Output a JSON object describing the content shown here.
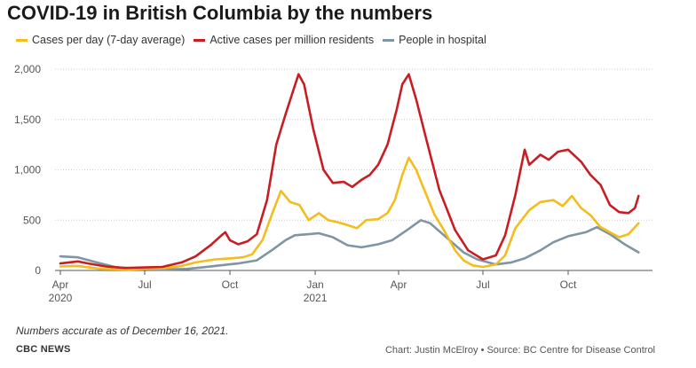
{
  "header": {
    "title": "COVID-19 in British Columbia by the numbers"
  },
  "footer": {
    "note": "Numbers accurate as of  December 16, 2021.",
    "brand": "CBC NEWS",
    "credit": "Chart: Justin McElroy • Source: BC Centre for Disease Control"
  },
  "chart_data": {
    "type": "line",
    "y_ticks": [
      "0",
      "500",
      "1,000",
      "1,500",
      "2,000"
    ],
    "ylim": [
      0,
      2000
    ],
    "grid": true,
    "legend_position": "top",
    "x_ticks": [
      {
        "date": "2020-04-01",
        "label": "Apr",
        "sub": "2020"
      },
      {
        "date": "2020-07-01",
        "label": "Jul",
        "sub": ""
      },
      {
        "date": "2020-10-01",
        "label": "Oct",
        "sub": ""
      },
      {
        "date": "2021-01-01",
        "label": "Jan",
        "sub": "2021"
      },
      {
        "date": "2021-04-01",
        "label": "Apr",
        "sub": ""
      },
      {
        "date": "2021-07-01",
        "label": "Jul",
        "sub": ""
      },
      {
        "date": "2021-10-01",
        "label": "Oct",
        "sub": ""
      }
    ],
    "xlim": [
      "2020-04-01",
      "2021-12-31"
    ],
    "series": [
      {
        "name": "Cases per day (7-day average)",
        "color": "#f2bd1d",
        "points": [
          [
            "2020-04-01",
            40
          ],
          [
            "2020-04-20",
            45
          ],
          [
            "2020-05-15",
            15
          ],
          [
            "2020-06-15",
            10
          ],
          [
            "2020-07-01",
            15
          ],
          [
            "2020-07-20",
            20
          ],
          [
            "2020-08-10",
            45
          ],
          [
            "2020-08-25",
            80
          ],
          [
            "2020-09-15",
            110
          ],
          [
            "2020-10-01",
            120
          ],
          [
            "2020-10-15",
            130
          ],
          [
            "2020-10-25",
            160
          ],
          [
            "2020-11-05",
            300
          ],
          [
            "2020-11-15",
            550
          ],
          [
            "2020-11-25",
            790
          ],
          [
            "2020-12-05",
            680
          ],
          [
            "2020-12-15",
            650
          ],
          [
            "2020-12-25",
            500
          ],
          [
            "2021-01-05",
            570
          ],
          [
            "2021-01-15",
            500
          ],
          [
            "2021-01-25",
            480
          ],
          [
            "2021-02-05",
            450
          ],
          [
            "2021-02-15",
            420
          ],
          [
            "2021-02-25",
            500
          ],
          [
            "2021-03-10",
            510
          ],
          [
            "2021-03-20",
            570
          ],
          [
            "2021-03-28",
            700
          ],
          [
            "2021-04-05",
            950
          ],
          [
            "2021-04-12",
            1120
          ],
          [
            "2021-04-20",
            1000
          ],
          [
            "2021-05-01",
            750
          ],
          [
            "2021-05-10",
            550
          ],
          [
            "2021-05-20",
            400
          ],
          [
            "2021-06-01",
            200
          ],
          [
            "2021-06-10",
            100
          ],
          [
            "2021-06-20",
            50
          ],
          [
            "2021-07-01",
            35
          ],
          [
            "2021-07-15",
            60
          ],
          [
            "2021-07-25",
            150
          ],
          [
            "2021-08-05",
            420
          ],
          [
            "2021-08-20",
            600
          ],
          [
            "2021-09-01",
            680
          ],
          [
            "2021-09-15",
            700
          ],
          [
            "2021-09-25",
            640
          ],
          [
            "2021-10-05",
            740
          ],
          [
            "2021-10-15",
            620
          ],
          [
            "2021-10-25",
            550
          ],
          [
            "2021-11-05",
            430
          ],
          [
            "2021-11-15",
            380
          ],
          [
            "2021-11-25",
            330
          ],
          [
            "2021-12-05",
            360
          ],
          [
            "2021-12-16",
            470
          ]
        ]
      },
      {
        "name": "Active cases per million residents",
        "color": "#c71e24",
        "points": [
          [
            "2020-04-01",
            70
          ],
          [
            "2020-04-20",
            90
          ],
          [
            "2020-05-01",
            70
          ],
          [
            "2020-05-20",
            40
          ],
          [
            "2020-06-10",
            25
          ],
          [
            "2020-07-01",
            30
          ],
          [
            "2020-07-20",
            35
          ],
          [
            "2020-08-10",
            80
          ],
          [
            "2020-08-25",
            140
          ],
          [
            "2020-09-10",
            250
          ],
          [
            "2020-09-22",
            350
          ],
          [
            "2020-09-26",
            380
          ],
          [
            "2020-10-01",
            300
          ],
          [
            "2020-10-10",
            260
          ],
          [
            "2020-10-20",
            290
          ],
          [
            "2020-10-30",
            360
          ],
          [
            "2020-11-10",
            700
          ],
          [
            "2020-11-20",
            1250
          ],
          [
            "2020-11-30",
            1550
          ],
          [
            "2020-12-08",
            1780
          ],
          [
            "2020-12-14",
            1950
          ],
          [
            "2020-12-20",
            1850
          ],
          [
            "2020-12-30",
            1400
          ],
          [
            "2021-01-10",
            1000
          ],
          [
            "2021-01-20",
            870
          ],
          [
            "2021-02-01",
            880
          ],
          [
            "2021-02-10",
            830
          ],
          [
            "2021-02-20",
            900
          ],
          [
            "2021-03-01",
            950
          ],
          [
            "2021-03-10",
            1050
          ],
          [
            "2021-03-20",
            1250
          ],
          [
            "2021-03-30",
            1600
          ],
          [
            "2021-04-05",
            1850
          ],
          [
            "2021-04-12",
            1950
          ],
          [
            "2021-04-20",
            1700
          ],
          [
            "2021-05-01",
            1300
          ],
          [
            "2021-05-15",
            800
          ],
          [
            "2021-06-01",
            400
          ],
          [
            "2021-06-15",
            200
          ],
          [
            "2021-07-01",
            110
          ],
          [
            "2021-07-15",
            150
          ],
          [
            "2021-07-25",
            350
          ],
          [
            "2021-08-05",
            750
          ],
          [
            "2021-08-15",
            1200
          ],
          [
            "2021-08-20",
            1050
          ],
          [
            "2021-09-01",
            1150
          ],
          [
            "2021-09-10",
            1100
          ],
          [
            "2021-09-20",
            1180
          ],
          [
            "2021-10-01",
            1200
          ],
          [
            "2021-10-15",
            1080
          ],
          [
            "2021-10-25",
            950
          ],
          [
            "2021-11-05",
            850
          ],
          [
            "2021-11-15",
            650
          ],
          [
            "2021-11-25",
            580
          ],
          [
            "2021-12-05",
            570
          ],
          [
            "2021-12-12",
            620
          ],
          [
            "2021-12-16",
            740
          ]
        ]
      },
      {
        "name": "People in hospital",
        "color": "#7f95a3",
        "points": [
          [
            "2020-04-01",
            140
          ],
          [
            "2020-04-20",
            130
          ],
          [
            "2020-05-10",
            80
          ],
          [
            "2020-06-01",
            30
          ],
          [
            "2020-07-01",
            15
          ],
          [
            "2020-07-20",
            10
          ],
          [
            "2020-08-15",
            15
          ],
          [
            "2020-09-01",
            30
          ],
          [
            "2020-09-20",
            50
          ],
          [
            "2020-10-10",
            70
          ],
          [
            "2020-10-30",
            100
          ],
          [
            "2020-11-15",
            200
          ],
          [
            "2020-11-30",
            300
          ],
          [
            "2020-12-10",
            350
          ],
          [
            "2020-12-25",
            360
          ],
          [
            "2021-01-05",
            370
          ],
          [
            "2021-01-20",
            330
          ],
          [
            "2021-02-05",
            250
          ],
          [
            "2021-02-20",
            230
          ],
          [
            "2021-03-10",
            260
          ],
          [
            "2021-03-25",
            300
          ],
          [
            "2021-04-10",
            400
          ],
          [
            "2021-04-25",
            500
          ],
          [
            "2021-05-05",
            470
          ],
          [
            "2021-05-20",
            350
          ],
          [
            "2021-06-10",
            180
          ],
          [
            "2021-06-25",
            110
          ],
          [
            "2021-07-15",
            60
          ],
          [
            "2021-08-01",
            80
          ],
          [
            "2021-08-15",
            120
          ],
          [
            "2021-09-01",
            200
          ],
          [
            "2021-09-15",
            280
          ],
          [
            "2021-10-01",
            340
          ],
          [
            "2021-10-20",
            380
          ],
          [
            "2021-11-01",
            430
          ],
          [
            "2021-11-15",
            360
          ],
          [
            "2021-12-01",
            260
          ],
          [
            "2021-12-16",
            180
          ]
        ]
      }
    ]
  }
}
